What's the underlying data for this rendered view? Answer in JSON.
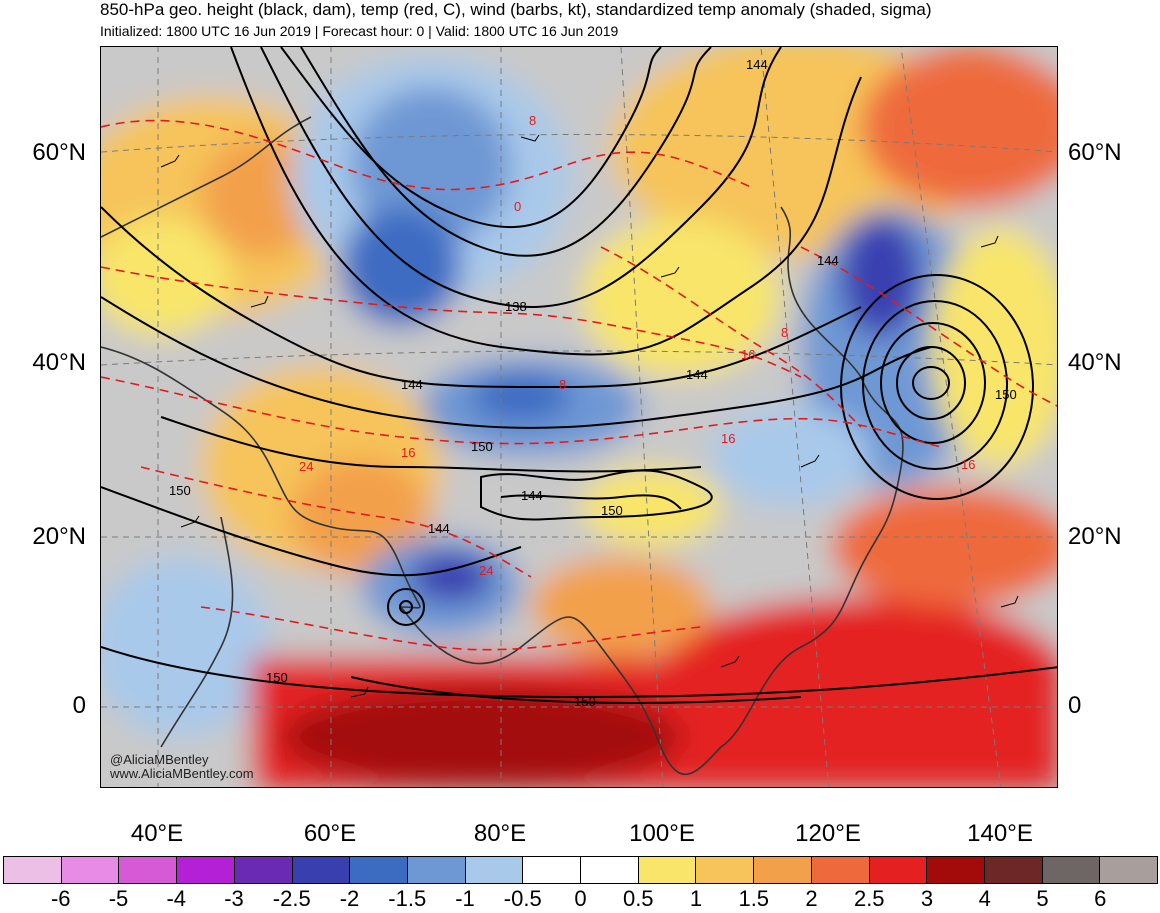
{
  "header": {
    "title": "850-hPa geo. height (black, dam), temp (red, C), wind (barbs, kt), standardized temp anomaly (shaded, sigma)",
    "subtitle": "Initialized: 1800 UTC 16 Jun 2019 | Forecast hour: 0 | Valid: 1800 UTC 16 Jun 2019"
  },
  "axes": {
    "lat_labels": [
      "60°N",
      "40°N",
      "20°N",
      "0"
    ],
    "lon_labels": [
      "40°E",
      "60°E",
      "80°E",
      "100°E",
      "120°E",
      "140°E"
    ]
  },
  "contour_labels": {
    "height": [
      "144",
      "144",
      "138",
      "144",
      "144",
      "150",
      "150",
      "144",
      "150",
      "144",
      "150",
      "150",
      "150"
    ],
    "temperature": [
      "0",
      "8",
      "8",
      "16",
      "16",
      "16",
      "16",
      "24",
      "24",
      "8"
    ]
  },
  "watermark": {
    "handle": "@AliciaMBentley",
    "url": "www.AliciaMBentley.com"
  },
  "colorbar": {
    "labels": [
      "-6",
      "-5",
      "-4",
      "-3",
      "-2.5",
      "-2",
      "-1.5",
      "-1",
      "-0.5",
      "0",
      "0.5",
      "1",
      "1.5",
      "2",
      "2.5",
      "3",
      "4",
      "5",
      "6"
    ],
    "colors": [
      "#ebbfe6",
      "#e88be6",
      "#d659d6",
      "#b320d6",
      "#6a2ab3",
      "#3a3fb0",
      "#3c6cc2",
      "#6e98d4",
      "#a9c9ea",
      "#ffffff",
      "#ffffff",
      "#f8e56a",
      "#f6c45a",
      "#f3a04b",
      "#ee6a3d",
      "#e42020",
      "#a30b0b",
      "#6d2727",
      "#6e6664",
      "#a89e9c"
    ]
  },
  "legend_colors": {
    "height_contour": "#000000",
    "temp_contour": "#e41a1a",
    "frame": "#000000"
  }
}
